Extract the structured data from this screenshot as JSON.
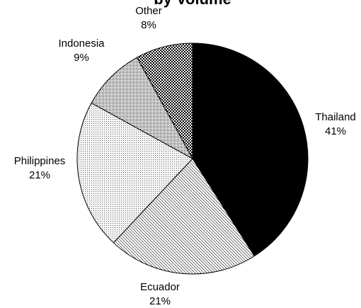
{
  "chart_data": {
    "type": "pie",
    "title": "by Volume",
    "start_angle_deg": 0,
    "direction": "clockwise",
    "legend": "none",
    "slices": [
      {
        "label": "Thailand",
        "value": 41,
        "value_label": "41%",
        "fill": "solid-black"
      },
      {
        "label": "Ecuador",
        "value": 21,
        "value_label": "21%",
        "fill": "diagonal-hatch"
      },
      {
        "label": "Philippines",
        "value": 21,
        "value_label": "21%",
        "fill": "light-dots"
      },
      {
        "label": "Indonesia",
        "value": 9,
        "value_label": "9%",
        "fill": "dense-dots"
      },
      {
        "label": "Other",
        "value": 8,
        "value_label": "8%",
        "fill": "checker"
      }
    ]
  }
}
